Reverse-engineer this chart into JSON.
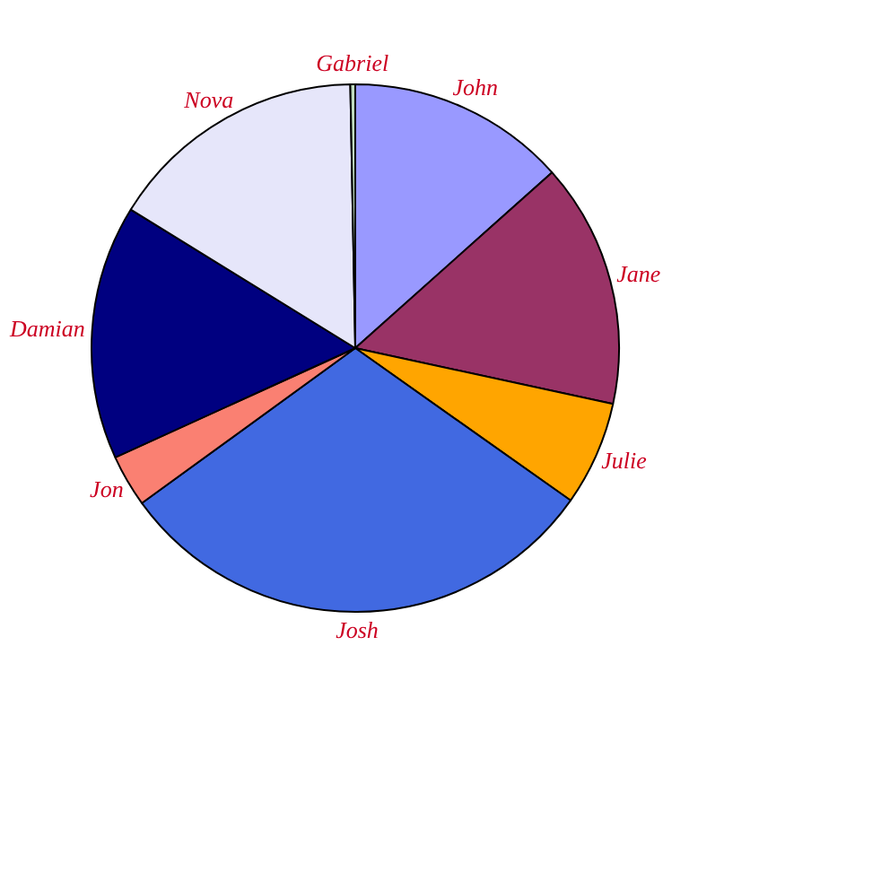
{
  "chart_data": {
    "type": "pie",
    "categories": [
      "John",
      "Jane",
      "Julie",
      "Josh",
      "Jon",
      "Damian",
      "Nova",
      "Gabriel"
    ],
    "values": [
      13.4,
      15.0,
      6.4,
      30.2,
      3.2,
      15.6,
      15.9,
      0.3
    ],
    "colors": [
      "#9999ff",
      "#993366",
      "#ffa500",
      "#4169e1",
      "#fa8072",
      "#000080",
      "#e6e6fa",
      "#c0dcc0"
    ]
  }
}
